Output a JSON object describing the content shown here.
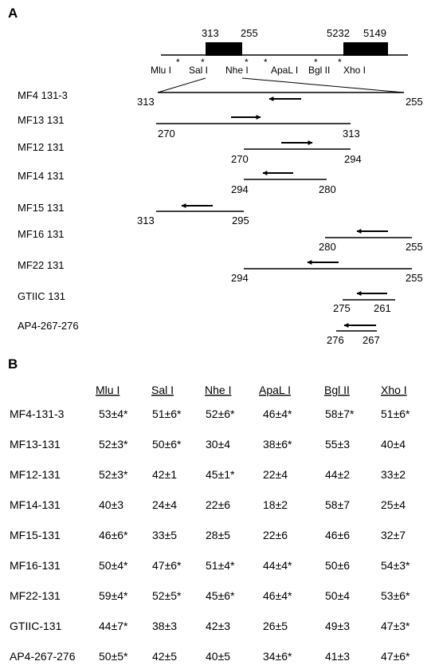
{
  "panel_a": {
    "label": "A",
    "map_numbers": [
      "313",
      "255",
      "5232",
      "5149"
    ],
    "enzymes": [
      "Mlu I",
      "Sal I",
      "Nhe I",
      "ApaL I",
      "Bgl II",
      "Xho I"
    ],
    "star": "*",
    "constructs": [
      {
        "name": "MF4  131-3",
        "left_label": "313",
        "right_label": "255"
      },
      {
        "name": "MF13  131",
        "left_label": "270",
        "right_label": "313"
      },
      {
        "name": "MF12  131",
        "left_label": "270",
        "right_label": "294"
      },
      {
        "name": "MF14  131",
        "left_label": "294",
        "right_label": "280"
      },
      {
        "name": "MF15  131",
        "left_label": "313",
        "right_label": "295"
      },
      {
        "name": "MF16  131",
        "left_label": "280",
        "right_label": "255"
      },
      {
        "name": "MF22  131",
        "left_label": "294",
        "right_label": "255"
      },
      {
        "name": "GTIIC 131",
        "left_label": "275",
        "right_label": "261"
      },
      {
        "name": "AP4-267-276",
        "left_label": "276",
        "right_label": "267"
      }
    ]
  },
  "panel_b": {
    "label": "B",
    "columns": [
      "Mlu  I",
      "Sal  I",
      "Nhe  I",
      "ApaL  I",
      "Bgl  II",
      "Xho  I"
    ],
    "rows": [
      {
        "name": "MF4-131-3",
        "cells": [
          "53±4*",
          "51±6*",
          "52±6*",
          "46±4*",
          "58±7*",
          "51±6*"
        ]
      },
      {
        "name": "MF13-131",
        "cells": [
          "52±3*",
          "50±6*",
          "30±4",
          "38±6*",
          "55±3",
          "40±4"
        ]
      },
      {
        "name": "MF12-131",
        "cells": [
          "52±3*",
          "42±1",
          "45±1*",
          "22±4",
          "44±2",
          "33±2"
        ]
      },
      {
        "name": "MF14-131",
        "cells": [
          "40±3",
          "24±4",
          "22±6",
          "18±2",
          "58±7",
          "25±4"
        ]
      },
      {
        "name": "MF15-131",
        "cells": [
          "46±6*",
          "33±5",
          "28±5",
          "22±6",
          "46±6",
          "32±7"
        ]
      },
      {
        "name": "MF16-131",
        "cells": [
          "50±4*",
          "47±6*",
          "51±4*",
          "44±4*",
          "50±6",
          "54±3*"
        ]
      },
      {
        "name": "MF22-131",
        "cells": [
          "59±4*",
          "52±5*",
          "45±6*",
          "46±4*",
          "50±4",
          "53±6*"
        ]
      },
      {
        "name": "GTIIC-131",
        "cells": [
          "44±7*",
          "38±3",
          "42±3",
          "26±5",
          "49±3",
          "47±3*"
        ]
      },
      {
        "name": "AP4-267-276",
        "cells": [
          "50±5*",
          "42±5",
          "40±5",
          "34±6*",
          "41±3",
          "47±6*"
        ]
      }
    ]
  }
}
